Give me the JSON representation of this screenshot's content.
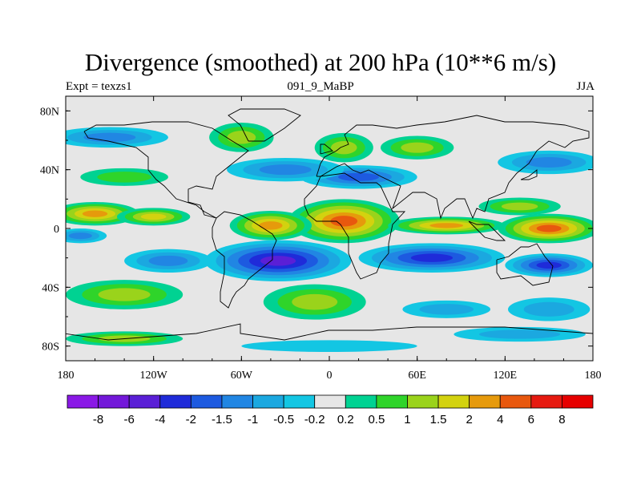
{
  "chart_data": {
    "type": "heatmap",
    "title": "Divergence (smoothed) at 200 hPa (10**6 m/s)",
    "subtitle_left": "Expt = texzs1",
    "subtitle_center": "091_9_MaBP",
    "subtitle_right": "JJA",
    "x_ticks": [
      "180",
      "120W",
      "60W",
      "0",
      "60E",
      "120E",
      "180"
    ],
    "x_tick_values": [
      -180,
      -120,
      -60,
      0,
      60,
      120,
      180
    ],
    "y_ticks": [
      "80N",
      "40N",
      "0",
      "40S",
      "80S"
    ],
    "y_tick_values": [
      80,
      40,
      0,
      -40,
      -80
    ],
    "xlim": [
      -180,
      180
    ],
    "ylim": [
      -90,
      90
    ],
    "levels": [
      "-8",
      "-6",
      "-4",
      "-2",
      "-1.5",
      "-1",
      "-0.5",
      "-0.2",
      "0.2",
      "0.5",
      "1",
      "1.5",
      "2",
      "4",
      "6",
      "8"
    ],
    "level_values": [
      -8,
      -6,
      -4,
      -2,
      -1.5,
      -1,
      -0.5,
      -0.2,
      0.2,
      0.5,
      1,
      1.5,
      2,
      4,
      6,
      8
    ],
    "colors": [
      "#8a19e6",
      "#7318d9",
      "#5a1fd6",
      "#1f2bd9",
      "#1d5ae0",
      "#2186e3",
      "#1ba8e0",
      "#13c6e3",
      "#e6e6e6",
      "#00d292",
      "#2fd42a",
      "#9ad31b",
      "#d3d20f",
      "#e69a0c",
      "#e8580e",
      "#e61a10",
      "#e60000"
    ],
    "features": [
      {
        "lon": 10,
        "lat": 5,
        "rx": 38,
        "ry": 15,
        "value": 5
      },
      {
        "lon": -40,
        "lat": 2,
        "rx": 28,
        "ry": 10,
        "value": 3
      },
      {
        "lon": -160,
        "lat": 10,
        "rx": 30,
        "ry": 8,
        "value": 3
      },
      {
        "lon": -120,
        "lat": 8,
        "rx": 25,
        "ry": 6,
        "value": 1.6
      },
      {
        "lon": -170,
        "lat": -5,
        "rx": 18,
        "ry": 5,
        "value": -1
      },
      {
        "lon": 80,
        "lat": 2,
        "rx": 40,
        "ry": 6,
        "value": 3
      },
      {
        "lon": 150,
        "lat": 0,
        "rx": 35,
        "ry": 10,
        "value": 4
      },
      {
        "lon": 130,
        "lat": 15,
        "rx": 28,
        "ry": 6,
        "value": 1
      },
      {
        "lon": -35,
        "lat": -22,
        "rx": 50,
        "ry": 14,
        "value": -4.5
      },
      {
        "lon": 70,
        "lat": -20,
        "rx": 50,
        "ry": 10,
        "value": -3
      },
      {
        "lon": 150,
        "lat": -25,
        "rx": 30,
        "ry": 8,
        "value": -2.5
      },
      {
        "lon": -110,
        "lat": -22,
        "rx": 30,
        "ry": 8,
        "value": -1.2
      },
      {
        "lon": -140,
        "lat": -45,
        "rx": 40,
        "ry": 10,
        "value": 1.2
      },
      {
        "lon": -10,
        "lat": -50,
        "rx": 35,
        "ry": 12,
        "value": 1.3
      },
      {
        "lon": 80,
        "lat": -55,
        "rx": 30,
        "ry": 6,
        "value": -0.8
      },
      {
        "lon": 150,
        "lat": -55,
        "rx": 28,
        "ry": 8,
        "value": -0.7
      },
      {
        "lon": -150,
        "lat": 62,
        "rx": 40,
        "ry": 7,
        "value": -1.2
      },
      {
        "lon": -60,
        "lat": 62,
        "rx": 22,
        "ry": 10,
        "value": 1.2
      },
      {
        "lon": 10,
        "lat": 55,
        "rx": 20,
        "ry": 10,
        "value": 1.2
      },
      {
        "lon": 60,
        "lat": 55,
        "rx": 25,
        "ry": 8,
        "value": 1.2
      },
      {
        "lon": 20,
        "lat": 35,
        "rx": 40,
        "ry": 8,
        "value": -1.5
      },
      {
        "lon": 150,
        "lat": 45,
        "rx": 35,
        "ry": 8,
        "value": -1.2
      },
      {
        "lon": -30,
        "lat": 40,
        "rx": 40,
        "ry": 8,
        "value": -1
      },
      {
        "lon": -140,
        "lat": 35,
        "rx": 30,
        "ry": 6,
        "value": 0.8
      },
      {
        "lon": -140,
        "lat": -75,
        "rx": 40,
        "ry": 5,
        "value": 1.2
      },
      {
        "lon": 130,
        "lat": -72,
        "rx": 45,
        "ry": 5,
        "value": -0.6
      },
      {
        "lon": 0,
        "lat": -80,
        "rx": 60,
        "ry": 4,
        "value": -0.4
      }
    ]
  }
}
